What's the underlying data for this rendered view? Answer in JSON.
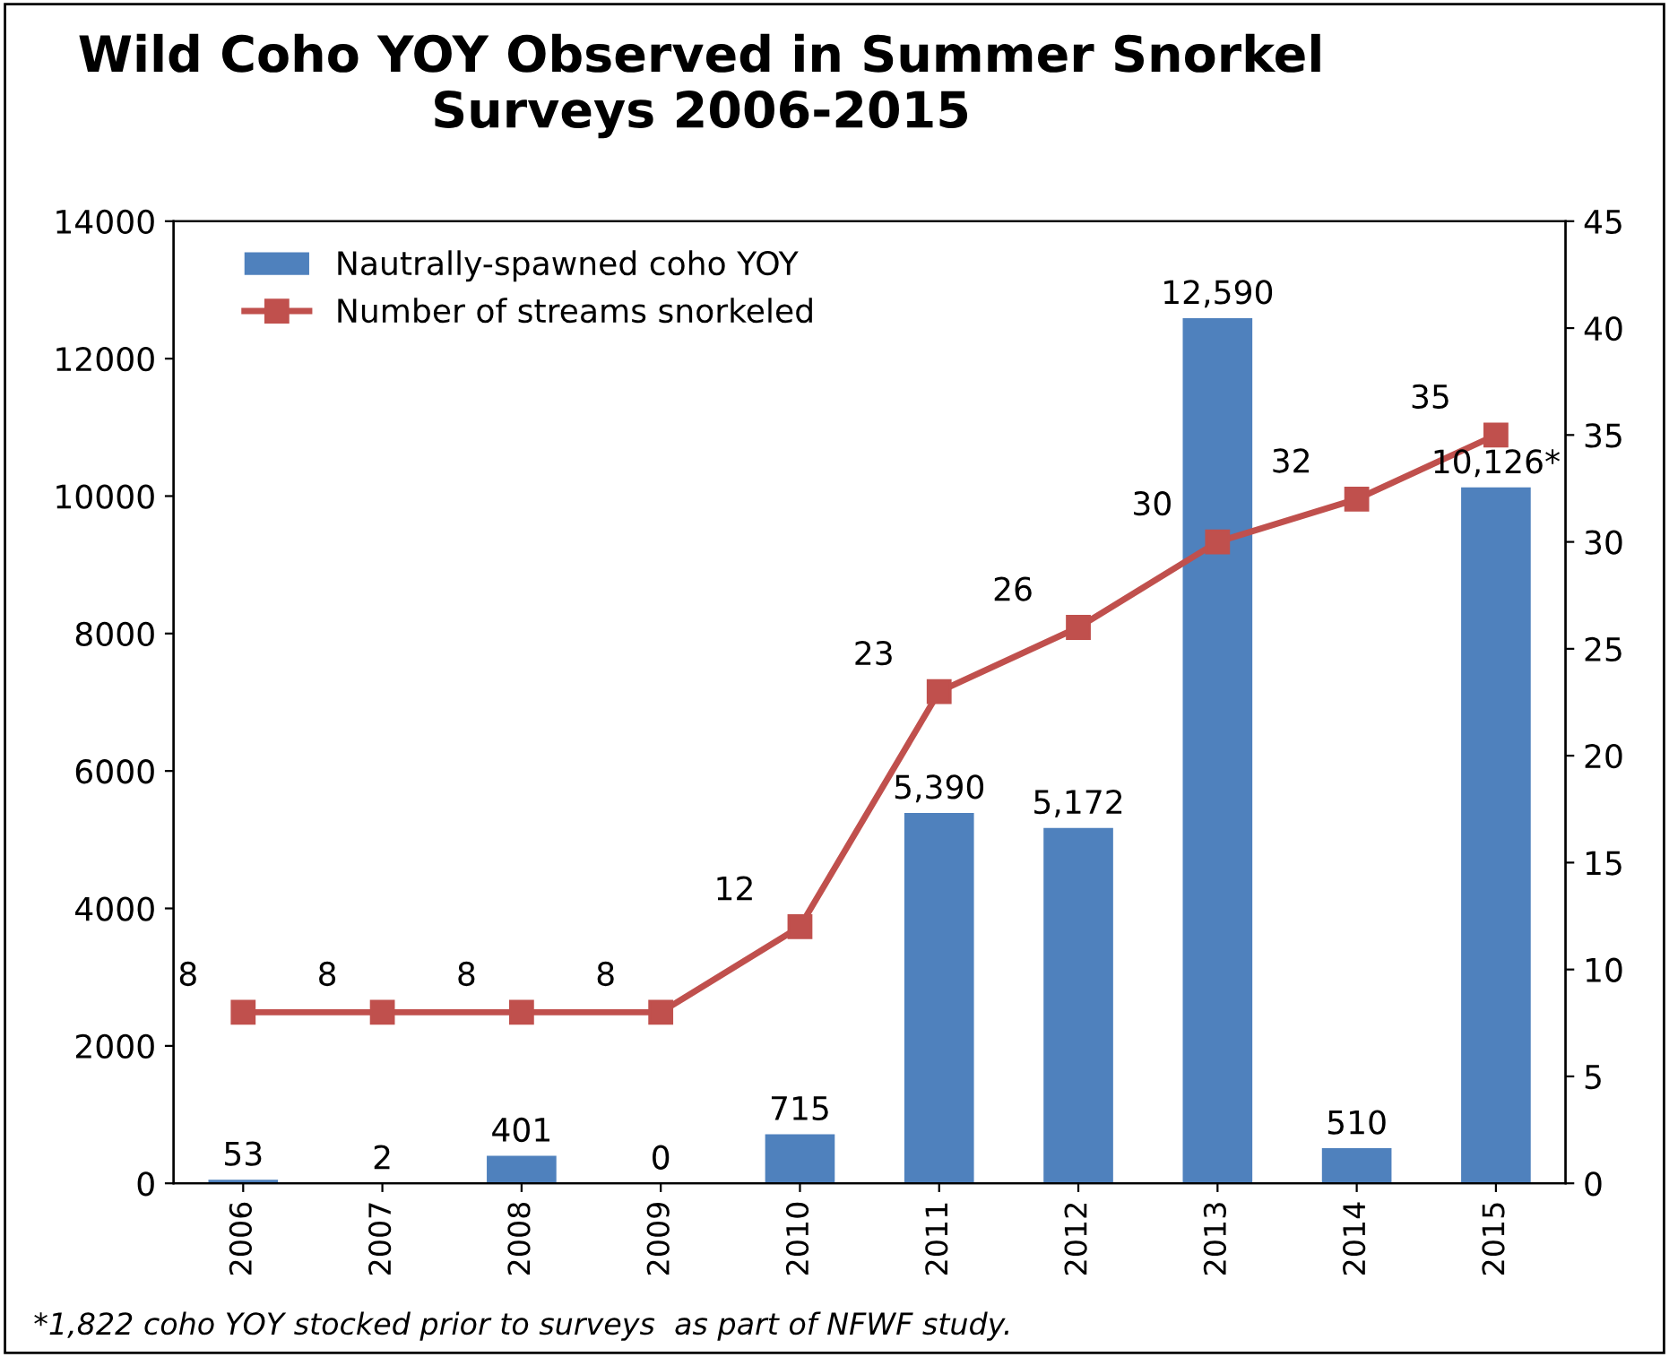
{
  "chart_data": {
    "type": "bar",
    "title": "Wild Coho YOY Observed in Summer Snorkel\nSurveys 2006-2015",
    "categories": [
      "2006",
      "2007",
      "2008",
      "2009",
      "2010",
      "2011",
      "2012",
      "2013",
      "2014",
      "2015"
    ],
    "series": [
      {
        "name": "Nautrally-spawned coho YOY",
        "color": "#4f81bd",
        "values": [
          53,
          2,
          401,
          0,
          715,
          5390,
          5172,
          12590,
          510,
          10126
        ],
        "value_labels": [
          "53",
          "2",
          "401",
          "0",
          "715",
          "5,390",
          "5,172",
          "12,590",
          "510",
          "10,126*"
        ]
      },
      {
        "name": "Number of streams snorkeled",
        "type": "line",
        "axis": "y2",
        "color": "#c0504d",
        "marker": "square",
        "values": [
          8,
          8,
          8,
          8,
          12,
          23,
          26,
          30,
          32,
          35
        ],
        "value_labels": [
          "8",
          "8",
          "8",
          "8",
          "12",
          "23",
          "26",
          "30",
          "32",
          "35"
        ]
      }
    ],
    "ylim": [
      0,
      14000
    ],
    "yticks": [
      0,
      2000,
      4000,
      6000,
      8000,
      10000,
      12000,
      14000
    ],
    "y2lim": [
      0,
      45
    ],
    "y2ticks": [
      0,
      5,
      10,
      15,
      20,
      25,
      30,
      35,
      40,
      45
    ],
    "legend": "top left",
    "grid": false,
    "annotations": [
      "*1,822 coho YOY stocked prior to surveys  as part of NFWF study."
    ]
  }
}
